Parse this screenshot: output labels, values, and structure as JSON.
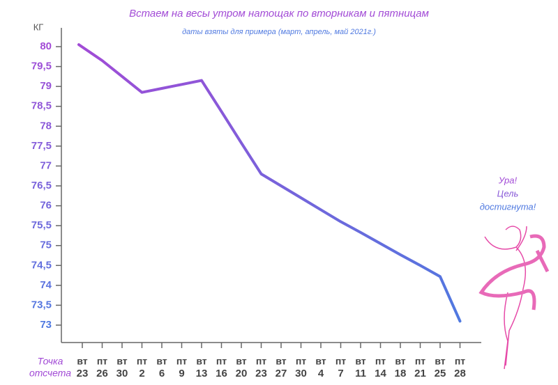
{
  "chart_data": {
    "type": "line",
    "title": "Встаем на весы утром натощак по вторникам и пятницам",
    "subtitle": "даты взяты для примера (март, апрель, май 2021г.)",
    "ylabel": "КГ",
    "start_label": [
      "Точка",
      "отсчета"
    ],
    "annotation": [
      "Ура!",
      "Цель",
      "достигнута!"
    ],
    "categories": [
      [
        "вт",
        "23"
      ],
      [
        "пт",
        "26"
      ],
      [
        "вт",
        "30"
      ],
      [
        "пт",
        "2"
      ],
      [
        "вт",
        "6"
      ],
      [
        "пт",
        "9"
      ],
      [
        "вт",
        "13"
      ],
      [
        "пт",
        "16"
      ],
      [
        "вт",
        "20"
      ],
      [
        "пт",
        "23"
      ],
      [
        "вт",
        "27"
      ],
      [
        "пт",
        "30"
      ],
      [
        "вт",
        "4"
      ],
      [
        "пт",
        "7"
      ],
      [
        "вт",
        "11"
      ],
      [
        "пт",
        "14"
      ],
      [
        "вт",
        "18"
      ],
      [
        "пт",
        "21"
      ],
      [
        "вт",
        "25"
      ],
      [
        "пт",
        "28"
      ]
    ],
    "values": [
      80.05,
      79.65,
      79.25,
      78.85,
      78.95,
      79.05,
      79.15,
      78.37,
      77.58,
      76.8,
      76.5,
      76.2,
      75.9,
      75.6,
      75.33,
      75.05,
      74.77,
      74.5,
      74.22,
      73.1
    ],
    "colors": [
      "#a24bd6",
      "#4f79e0"
    ],
    "ylim": [
      73,
      80
    ],
    "yticks": [
      73,
      {
        "value": 73.5,
        "label": "73,5"
      },
      74,
      {
        "value": 74.5,
        "label": "74,5"
      },
      75,
      {
        "value": 75.5,
        "label": "75,5"
      },
      76,
      {
        "value": 76.5,
        "label": "76,5"
      },
      77,
      {
        "value": 77.5,
        "label": "77,5"
      },
      78,
      {
        "value": 78.5,
        "label": "78,5"
      },
      79,
      {
        "value": 79.5,
        "label": "79,5"
      },
      80
    ]
  }
}
